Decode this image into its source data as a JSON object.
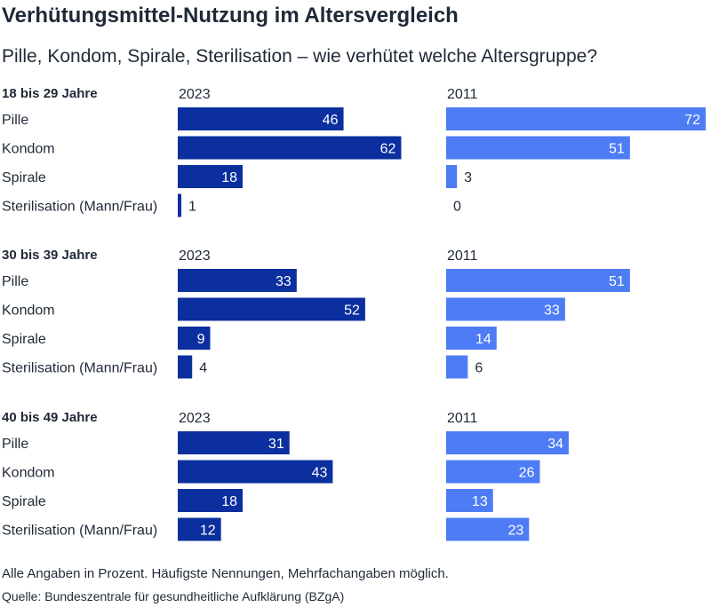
{
  "title": "Verhütungsmittel-Nutzung im Altersvergleich",
  "subtitle": "Pille, Kondom, Spirale, Sterilisation – wie verhütet welche Altersgruppe?",
  "footnote": "Alle Angaben in Prozent. Häufigste Nennungen, Mehrfachangaben möglich.",
  "source": "Quelle: Bundeszentrale für gesundheitliche Aufklärung (BZgA)",
  "colors": {
    "series_2023": "#0b2f9e",
    "series_2011": "#4d7cf5",
    "text": "#1f2937"
  },
  "chart_data": {
    "type": "bar",
    "orientation": "horizontal",
    "unit": "%",
    "categories": [
      "Pille",
      "Kondom",
      "Spirale",
      "Sterilisation (Mann/Frau)"
    ],
    "column_labels": [
      "2023",
      "2011"
    ],
    "xlim": [
      0,
      72
    ],
    "grid": false,
    "groups": [
      {
        "name": "18 bis 29 Jahre",
        "series": [
          {
            "name": "2023",
            "values": [
              46,
              62,
              18,
              1
            ]
          },
          {
            "name": "2011",
            "values": [
              72,
              51,
              3,
              0
            ]
          }
        ]
      },
      {
        "name": "30 bis 39 Jahre",
        "series": [
          {
            "name": "2023",
            "values": [
              33,
              52,
              9,
              4
            ]
          },
          {
            "name": "2011",
            "values": [
              51,
              33,
              14,
              6
            ]
          }
        ]
      },
      {
        "name": "40 bis 49 Jahre",
        "series": [
          {
            "name": "2023",
            "values": [
              31,
              43,
              18,
              12
            ]
          },
          {
            "name": "2011",
            "values": [
              34,
              26,
              13,
              23
            ]
          }
        ]
      }
    ]
  }
}
